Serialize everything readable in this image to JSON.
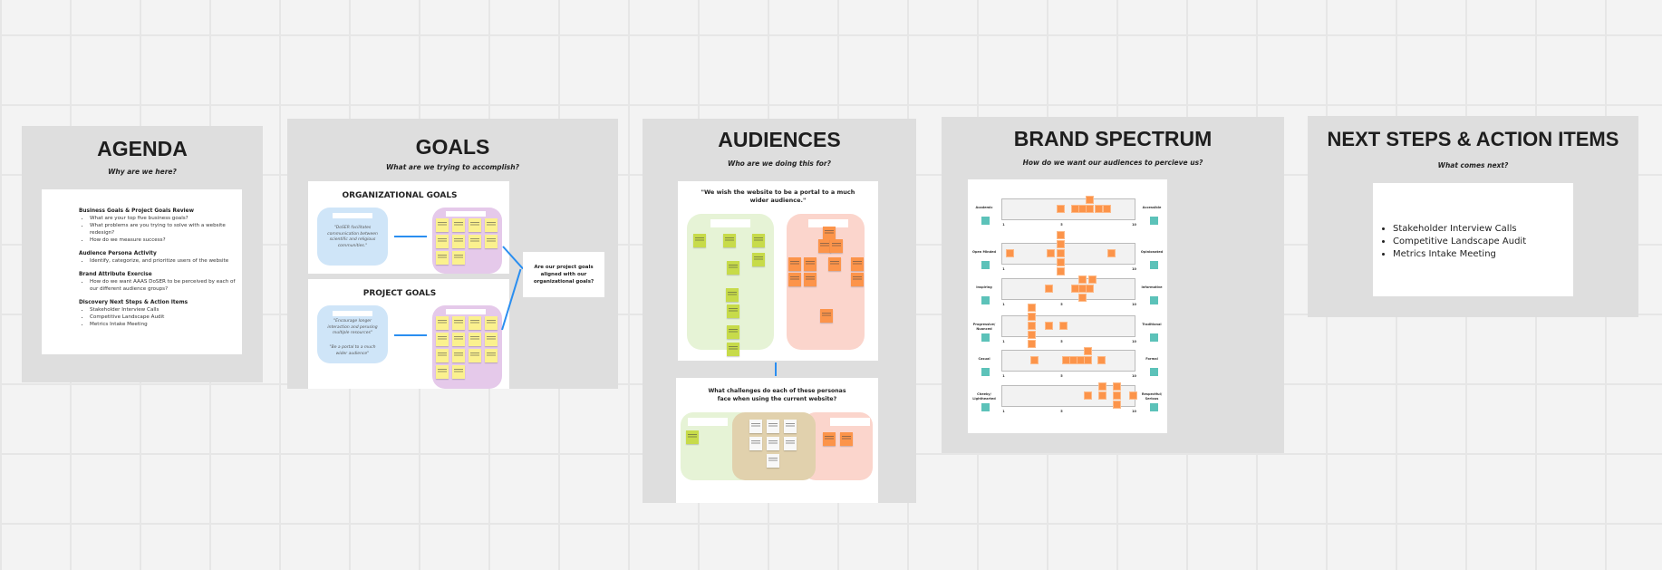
{
  "agenda": {
    "title": "AGENDA",
    "subtitle": "Why are we here?",
    "sections": [
      {
        "heading": "Business Goals & Project Goals Review",
        "items": [
          "What are your top five business goals?",
          "What problems are you trying to solve with a website redesign?",
          "How do we measure success?"
        ]
      },
      {
        "heading": "Audience Persona Activity",
        "items": [
          "Identify, categorize, and prioritize users of the website"
        ]
      },
      {
        "heading": "Brand Attribute Exercise",
        "items": [
          "How do we want AAAS DoSER to be perceived by each of our different audience groups?"
        ]
      },
      {
        "heading": "Discovery Next Steps & Action Items",
        "items": [
          "Stakeholder Interview Calls",
          "Competitive Landscape Audit",
          "Metrics Intake Meeting"
        ]
      }
    ]
  },
  "goals": {
    "title": "GOALS",
    "subtitle": "What are we trying to accomplish?",
    "org": {
      "title": "ORGANIZATIONAL GOALS",
      "quote": "\"DoSER facilitates communication between scientific and religious communities.\""
    },
    "project": {
      "title": "PROJECT GOALS",
      "quote1": "\"Encourage longer interaction and perusing multiple resources\"",
      "quote2": "\"Be a portal to a much wider audience\""
    },
    "question": "Are our project goals aligned with our organizational goals?"
  },
  "audiences": {
    "title": "AUDIENCES",
    "subtitle": "Who are we doing this for?",
    "quote": "\"We wish the website to be a portal to a much wider audience.\"",
    "challenges": "What challenges do each of these personas face when using the current website?"
  },
  "brand": {
    "title": "BRAND SPECTRUM",
    "subtitle": "How do we want our audiences to percieve us?",
    "scale": {
      "min": "1",
      "mid": "5",
      "max": "10"
    },
    "rows": [
      {
        "left": "Academic",
        "right": "Accessible",
        "votes": [
          5,
          6,
          6.5,
          7,
          7,
          7.6,
          8.2
        ]
      },
      {
        "left": "Open Minded",
        "right": "Opinionated",
        "votes": [
          1.5,
          4.3,
          5,
          5,
          5,
          5,
          5,
          8.5
        ]
      },
      {
        "left": "Inspiring",
        "right": "Informative",
        "votes": [
          4.2,
          6,
          7,
          6.5,
          7.2,
          6.5,
          6.5
        ]
      },
      {
        "left": "Progressive/ Nuanced",
        "right": "Traditional",
        "votes": [
          3,
          3,
          3,
          3,
          3,
          4.2,
          5.2
        ]
      },
      {
        "left": "Casual",
        "right": "Formal",
        "votes": [
          3.2,
          5.4,
          5.9,
          6.9,
          6.9,
          6.4,
          7.8
        ]
      },
      {
        "left": "Cheeky/ Lighthearted",
        "right": "Respectful/ Serious",
        "votes": [
          6.9,
          7.9,
          7.9,
          8.9,
          8.9,
          8.9,
          10
        ]
      }
    ],
    "colors": {
      "vote": "#fc944a",
      "marker": "#5cc2b9"
    }
  },
  "next_steps": {
    "title": "NEXT STEPS & ACTION ITEMS",
    "subtitle": "What comes next?",
    "items": [
      "Stakeholder Interview Calls",
      "Competitive Landscape Audit",
      "Metrics Intake Meeting"
    ]
  }
}
